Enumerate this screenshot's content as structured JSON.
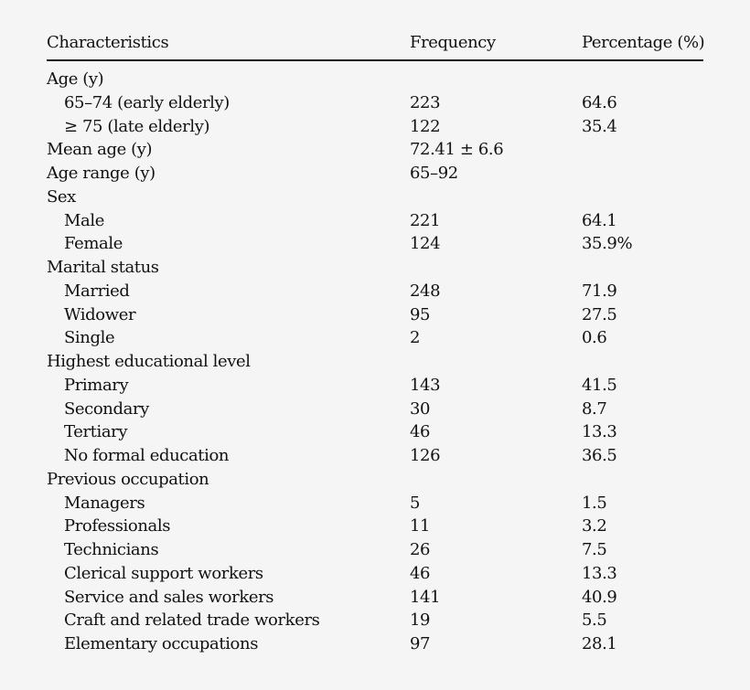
{
  "table": {
    "headers": {
      "characteristics": "Characteristics",
      "frequency": "Frequency",
      "percentage": "Percentage (%)"
    },
    "rows": [
      {
        "label": "Age (y)",
        "frequency": "",
        "percentage": "",
        "type": "group"
      },
      {
        "label": "65–74 (early elderly)",
        "frequency": "223",
        "percentage": "64.6",
        "type": "sub"
      },
      {
        "label": "≥ 75 (late elderly)",
        "frequency": "122",
        "percentage": "35.4",
        "type": "sub"
      },
      {
        "label": "Mean age (y)",
        "frequency": "72.41 ± 6.6",
        "percentage": "",
        "type": "group"
      },
      {
        "label": "Age range (y)",
        "frequency": "65–92",
        "percentage": "",
        "type": "group"
      },
      {
        "label": "Sex",
        "frequency": "",
        "percentage": "",
        "type": "group"
      },
      {
        "label": "Male",
        "frequency": "221",
        "percentage": "64.1",
        "type": "sub"
      },
      {
        "label": "Female",
        "frequency": "124",
        "percentage": "35.9%",
        "type": "sub"
      },
      {
        "label": "Marital status",
        "frequency": "",
        "percentage": "",
        "type": "group"
      },
      {
        "label": "Married",
        "frequency": "248",
        "percentage": "71.9",
        "type": "sub"
      },
      {
        "label": "Widower",
        "frequency": "95",
        "percentage": "27.5",
        "type": "sub"
      },
      {
        "label": "Single",
        "frequency": "2",
        "percentage": "0.6",
        "type": "sub"
      },
      {
        "label": "Highest educational level",
        "frequency": "",
        "percentage": "",
        "type": "group"
      },
      {
        "label": "Primary",
        "frequency": "143",
        "percentage": "41.5",
        "type": "sub"
      },
      {
        "label": "Secondary",
        "frequency": "30",
        "percentage": "8.7",
        "type": "sub"
      },
      {
        "label": "Tertiary",
        "frequency": "46",
        "percentage": "13.3",
        "type": "sub"
      },
      {
        "label": "No formal education",
        "frequency": "126",
        "percentage": "36.5",
        "type": "sub"
      },
      {
        "label": "Previous occupation",
        "frequency": "",
        "percentage": "",
        "type": "group"
      },
      {
        "label": "Managers",
        "frequency": "5",
        "percentage": "1.5",
        "type": "sub"
      },
      {
        "label": "Professionals",
        "frequency": "11",
        "percentage": "3.2",
        "type": "sub"
      },
      {
        "label": "Technicians",
        "frequency": "26",
        "percentage": "7.5",
        "type": "sub"
      },
      {
        "label": "Clerical support workers",
        "frequency": "46",
        "percentage": "13.3",
        "type": "sub"
      },
      {
        "label": "Service and sales workers",
        "frequency": "141",
        "percentage": "40.9",
        "type": "sub"
      },
      {
        "label": "Craft and related trade workers",
        "frequency": "19",
        "percentage": "5.5",
        "type": "sub"
      },
      {
        "label": "Elementary occupations",
        "frequency": "97",
        "percentage": "28.1",
        "type": "sub"
      }
    ]
  }
}
